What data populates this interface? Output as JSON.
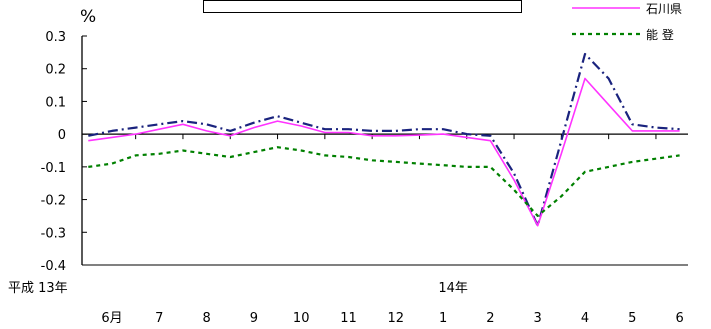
{
  "chart_data": {
    "type": "line",
    "unit": "%",
    "categories": [
      "6月",
      "7",
      "8",
      "9",
      "10",
      "11",
      "12",
      "1",
      "2",
      "3",
      "4",
      "5",
      "6"
    ],
    "year_labels": [
      {
        "text": "平成 13年",
        "at": 0
      },
      {
        "text": "14年",
        "at": 7
      }
    ],
    "ylim": [
      -0.4,
      0.3
    ],
    "yticks": [
      0.3,
      0.2,
      0.1,
      0,
      -0.1,
      -0.2,
      -0.3,
      -0.4
    ],
    "ytick_labels": [
      "0.3",
      "0.2",
      "0.1",
      "0",
      "-0.1",
      "-0.2",
      "-0.3",
      "-0.4"
    ],
    "series": [
      {
        "name": "",
        "color": "#1a237e",
        "style": "dashdot",
        "x": [
          -0.5,
          0,
          0.5,
          1,
          1.5,
          2,
          2.5,
          3,
          3.5,
          4,
          4.5,
          5,
          5.5,
          6,
          6.5,
          7,
          7.5,
          8,
          8.5,
          9,
          9.5,
          10,
          10.5,
          11,
          11.5,
          12
        ],
        "values": [
          -0.005,
          0.01,
          0.02,
          0.03,
          0.04,
          0.03,
          0.01,
          0.035,
          0.055,
          0.035,
          0.015,
          0.015,
          0.01,
          0.01,
          0.015,
          0.015,
          0.0,
          -0.005,
          -0.12,
          -0.28,
          -0.02,
          0.245,
          0.17,
          0.03,
          0.02,
          0.015
        ]
      },
      {
        "name": "石川県",
        "color": "#ff33ff",
        "style": "solid",
        "x": [
          -0.5,
          0,
          0.5,
          1,
          1.5,
          2,
          2.5,
          3,
          3.5,
          4,
          4.5,
          5,
          5.5,
          6,
          6.5,
          7,
          7.5,
          8,
          8.5,
          9,
          9.5,
          10,
          10.5,
          11,
          11.5,
          12
        ],
        "values": [
          -0.02,
          -0.01,
          0.0,
          0.015,
          0.03,
          0.01,
          -0.005,
          0.02,
          0.04,
          0.025,
          0.005,
          0.005,
          -0.005,
          -0.005,
          -0.003,
          0.0,
          -0.01,
          -0.02,
          -0.14,
          -0.28,
          -0.06,
          0.17,
          0.09,
          0.01,
          0.01,
          0.01
        ]
      },
      {
        "name": "能 登",
        "color": "#008000",
        "style": "dotted",
        "x": [
          -0.5,
          0,
          0.5,
          1,
          1.5,
          2,
          2.5,
          3,
          3.5,
          4,
          4.5,
          5,
          5.5,
          6,
          6.5,
          7,
          7.5,
          8,
          8.5,
          9,
          9.5,
          10,
          10.5,
          11,
          11.5,
          12
        ],
        "values": [
          -0.1,
          -0.09,
          -0.065,
          -0.06,
          -0.05,
          -0.06,
          -0.07,
          -0.055,
          -0.04,
          -0.05,
          -0.065,
          -0.07,
          -0.08,
          -0.085,
          -0.09,
          -0.095,
          -0.1,
          -0.1,
          -0.17,
          -0.25,
          -0.19,
          -0.115,
          -0.1,
          -0.085,
          -0.075,
          -0.065
        ]
      }
    ],
    "legend": {
      "position": "top-right"
    },
    "grid": false
  }
}
